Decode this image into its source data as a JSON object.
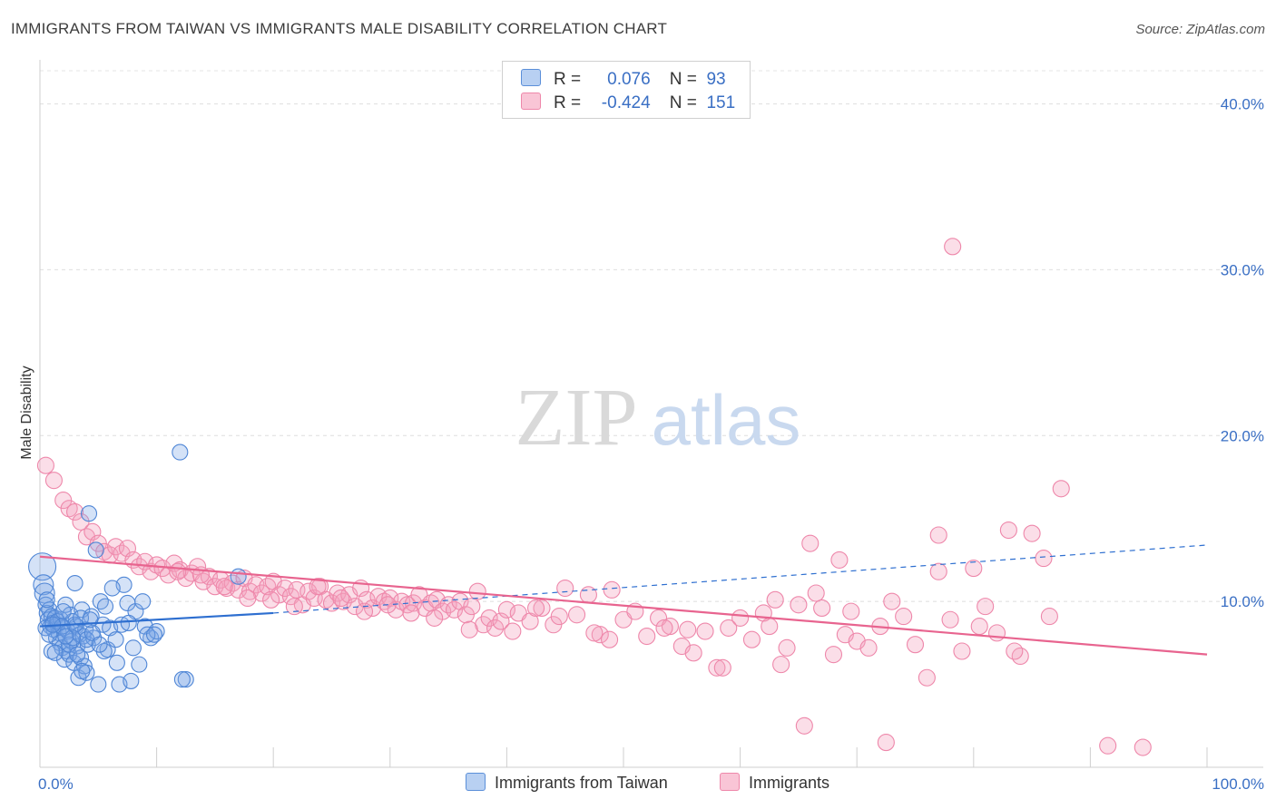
{
  "title": "IMMIGRANTS FROM TAIWAN VS IMMIGRANTS MALE DISABILITY CORRELATION CHART",
  "source": "Source: ZipAtlas.com",
  "watermark": {
    "zip": "ZIP",
    "atlas": "atlas"
  },
  "legend": {
    "r_label": "R =",
    "n_label": "N =",
    "rows": [
      {
        "r": "0.076",
        "n": "93"
      },
      {
        "r": "-0.424",
        "n": "151"
      }
    ]
  },
  "chart_data": {
    "type": "scatter",
    "title": "IMMIGRANTS FROM TAIWAN VS IMMIGRANTS MALE DISABILITY CORRELATION CHART",
    "xlabel": "",
    "ylabel": "Male Disability",
    "xlim": [
      0,
      100
    ],
    "ylim": [
      0,
      42
    ],
    "x_tick_labels": [
      "0.0%",
      "100.0%"
    ],
    "y_ticks": [
      10,
      20,
      30,
      40
    ],
    "y_tick_labels": [
      "10.0%",
      "20.0%",
      "30.0%",
      "40.0%"
    ],
    "grid": true,
    "colors": {
      "taiwan": "#5b8fd9",
      "immigrants": "#ee87aa",
      "taiwan_line": "#2e6fd0",
      "immigrants_line": "#e8648f"
    },
    "series": [
      {
        "name": "Immigrants from Taiwan",
        "trend": {
          "x0": 0,
          "y0": 8.5,
          "x1": 20,
          "y1": 9.3,
          "dash_x1": 100,
          "dash_y1": 13.4
        },
        "points": [
          [
            0.2,
            12.1
          ],
          [
            0.3,
            11.0
          ],
          [
            0.4,
            10.5
          ],
          [
            0.5,
            9.8
          ],
          [
            0.6,
            9.3
          ],
          [
            0.7,
            8.9
          ],
          [
            0.8,
            9.5
          ],
          [
            0.9,
            8.5
          ],
          [
            1.0,
            9.1
          ],
          [
            1.1,
            8.7
          ],
          [
            1.2,
            8.3
          ],
          [
            1.3,
            9.0
          ],
          [
            1.4,
            7.8
          ],
          [
            1.5,
            8.6
          ],
          [
            1.6,
            8.1
          ],
          [
            1.7,
            7.5
          ],
          [
            1.8,
            8.9
          ],
          [
            1.9,
            7.2
          ],
          [
            2.0,
            8.4
          ],
          [
            2.1,
            6.5
          ],
          [
            2.2,
            9.8
          ],
          [
            2.3,
            7.0
          ],
          [
            2.4,
            8.2
          ],
          [
            2.5,
            6.8
          ],
          [
            2.6,
            9.2
          ],
          [
            2.7,
            7.6
          ],
          [
            2.8,
            8.8
          ],
          [
            2.9,
            6.3
          ],
          [
            3.0,
            11.1
          ],
          [
            3.1,
            8.5
          ],
          [
            3.2,
            7.3
          ],
          [
            3.3,
            5.4
          ],
          [
            3.4,
            8.0
          ],
          [
            3.5,
            6.6
          ],
          [
            3.6,
            9.5
          ],
          [
            3.7,
            7.9
          ],
          [
            3.8,
            6.1
          ],
          [
            3.9,
            8.3
          ],
          [
            4.0,
            5.7
          ],
          [
            4.1,
            7.4
          ],
          [
            4.2,
            15.3
          ],
          [
            4.4,
            9.1
          ],
          [
            4.6,
            7.8
          ],
          [
            4.8,
            13.1
          ],
          [
            5.0,
            5.0
          ],
          [
            5.2,
            10.0
          ],
          [
            5.4,
            8.6
          ],
          [
            5.6,
            9.7
          ],
          [
            5.8,
            7.1
          ],
          [
            6.0,
            8.4
          ],
          [
            6.5,
            7.7
          ],
          [
            7.0,
            8.6
          ],
          [
            7.5,
            9.9
          ],
          [
            8.0,
            7.2
          ],
          [
            8.5,
            6.2
          ],
          [
            9.0,
            8.5
          ],
          [
            9.5,
            7.8
          ],
          [
            10.0,
            8.2
          ],
          [
            12.0,
            19.0
          ],
          [
            12.5,
            5.3
          ],
          [
            17.0,
            11.5
          ],
          [
            0.5,
            8.4
          ],
          [
            1.0,
            7.0
          ],
          [
            1.5,
            8.8
          ],
          [
            2.0,
            9.4
          ],
          [
            2.5,
            7.4
          ],
          [
            3.0,
            8.6
          ],
          [
            3.5,
            9.0
          ],
          [
            4.0,
            7.7
          ],
          [
            4.5,
            8.1
          ],
          [
            6.8,
            5.0
          ],
          [
            7.2,
            11.0
          ],
          [
            7.8,
            5.2
          ],
          [
            8.2,
            9.4
          ],
          [
            9.2,
            8.0
          ],
          [
            6.2,
            10.8
          ],
          [
            5.5,
            7.0
          ],
          [
            2.8,
            7.8
          ],
          [
            1.3,
            6.9
          ],
          [
            0.8,
            8.0
          ],
          [
            1.9,
            8.5
          ],
          [
            3.2,
            6.8
          ],
          [
            4.3,
            8.9
          ],
          [
            5.1,
            7.4
          ],
          [
            6.6,
            6.3
          ],
          [
            7.6,
            8.7
          ],
          [
            9.8,
            8.0
          ],
          [
            12.2,
            5.3
          ],
          [
            3.6,
            5.8
          ],
          [
            2.2,
            7.9
          ],
          [
            1.1,
            8.6
          ],
          [
            0.6,
            10.1
          ],
          [
            8.8,
            10.0
          ]
        ]
      },
      {
        "name": "Immigrants",
        "trend": {
          "x0": 0,
          "y0": 12.7,
          "x1": 100,
          "y1": 6.8
        },
        "points": [
          [
            0.5,
            18.2
          ],
          [
            1.2,
            17.3
          ],
          [
            2.0,
            16.1
          ],
          [
            2.5,
            15.6
          ],
          [
            3.0,
            15.4
          ],
          [
            3.5,
            14.8
          ],
          [
            4.0,
            13.9
          ],
          [
            4.5,
            14.2
          ],
          [
            5.0,
            13.5
          ],
          [
            5.5,
            13.0
          ],
          [
            6.0,
            12.8
          ],
          [
            6.5,
            13.3
          ],
          [
            7.0,
            12.9
          ],
          [
            7.5,
            13.2
          ],
          [
            8.0,
            12.5
          ],
          [
            8.5,
            12.1
          ],
          [
            9.0,
            12.4
          ],
          [
            9.5,
            11.8
          ],
          [
            10.0,
            12.2
          ],
          [
            10.5,
            12.0
          ],
          [
            11.0,
            11.6
          ],
          [
            11.5,
            12.3
          ],
          [
            12.0,
            11.9
          ],
          [
            12.5,
            11.4
          ],
          [
            13.0,
            11.7
          ],
          [
            13.5,
            12.1
          ],
          [
            14.0,
            11.2
          ],
          [
            14.5,
            11.5
          ],
          [
            15.0,
            10.9
          ],
          [
            15.5,
            11.3
          ],
          [
            16.0,
            10.8
          ],
          [
            16.5,
            11.1
          ],
          [
            17.0,
            10.7
          ],
          [
            17.5,
            11.4
          ],
          [
            18.0,
            10.6
          ],
          [
            18.5,
            11.0
          ],
          [
            19.0,
            10.5
          ],
          [
            19.5,
            10.9
          ],
          [
            20.0,
            11.2
          ],
          [
            20.5,
            10.4
          ],
          [
            21.0,
            10.8
          ],
          [
            21.5,
            10.3
          ],
          [
            22.0,
            10.7
          ],
          [
            22.5,
            9.8
          ],
          [
            23.0,
            10.6
          ],
          [
            23.5,
            10.2
          ],
          [
            24.0,
            10.9
          ],
          [
            24.5,
            10.1
          ],
          [
            25.0,
            9.9
          ],
          [
            25.5,
            10.5
          ],
          [
            26.0,
            10.0
          ],
          [
            26.5,
            10.4
          ],
          [
            27.0,
            9.7
          ],
          [
            27.5,
            10.8
          ],
          [
            28.0,
            10.1
          ],
          [
            28.5,
            9.6
          ],
          [
            29.0,
            10.3
          ],
          [
            29.5,
            10.0
          ],
          [
            30.0,
            10.2
          ],
          [
            30.5,
            9.5
          ],
          [
            31.0,
            10.0
          ],
          [
            31.5,
            9.8
          ],
          [
            32.0,
            9.9
          ],
          [
            32.5,
            10.4
          ],
          [
            33.0,
            9.6
          ],
          [
            33.5,
            9.9
          ],
          [
            34.0,
            10.1
          ],
          [
            34.5,
            9.4
          ],
          [
            35.0,
            9.8
          ],
          [
            35.5,
            9.5
          ],
          [
            36.0,
            10.0
          ],
          [
            36.5,
            9.2
          ],
          [
            37.0,
            9.7
          ],
          [
            38.0,
            8.6
          ],
          [
            38.5,
            9.0
          ],
          [
            39.0,
            8.4
          ],
          [
            39.5,
            8.8
          ],
          [
            40.0,
            9.5
          ],
          [
            40.5,
            8.2
          ],
          [
            41.0,
            9.3
          ],
          [
            42.0,
            8.8
          ],
          [
            43.0,
            9.6
          ],
          [
            44.0,
            8.6
          ],
          [
            45.0,
            10.8
          ],
          [
            46.0,
            9.2
          ],
          [
            47.0,
            10.4
          ],
          [
            48.0,
            8.0
          ],
          [
            49.0,
            10.7
          ],
          [
            50.0,
            8.9
          ],
          [
            51.0,
            9.4
          ],
          [
            52.0,
            7.9
          ],
          [
            53.0,
            9.0
          ],
          [
            54.0,
            8.5
          ],
          [
            55.0,
            7.3
          ],
          [
            56.0,
            6.9
          ],
          [
            57.0,
            8.2
          ],
          [
            58.0,
            6.0
          ],
          [
            59.0,
            8.4
          ],
          [
            60.0,
            9.0
          ],
          [
            61.0,
            7.7
          ],
          [
            62.0,
            9.3
          ],
          [
            63.0,
            10.1
          ],
          [
            64.0,
            7.2
          ],
          [
            65.0,
            9.8
          ],
          [
            66.0,
            13.5
          ],
          [
            66.5,
            10.5
          ],
          [
            67.0,
            9.6
          ],
          [
            68.0,
            6.8
          ],
          [
            68.5,
            12.5
          ],
          [
            69.0,
            8.0
          ],
          [
            70.0,
            7.6
          ],
          [
            71.0,
            7.2
          ],
          [
            72.0,
            8.5
          ],
          [
            73.0,
            10.0
          ],
          [
            74.0,
            9.1
          ],
          [
            75.0,
            7.4
          ],
          [
            76.0,
            5.4
          ],
          [
            77.0,
            11.8
          ],
          [
            78.0,
            8.9
          ],
          [
            79.0,
            7.0
          ],
          [
            80.0,
            12.0
          ],
          [
            81.0,
            9.7
          ],
          [
            82.0,
            8.1
          ],
          [
            83.0,
            14.3
          ],
          [
            84.0,
            6.7
          ],
          [
            85.0,
            14.1
          ],
          [
            86.0,
            12.6
          ],
          [
            87.5,
            16.8
          ],
          [
            55.5,
            8.3
          ],
          [
            47.5,
            8.1
          ],
          [
            44.5,
            9.1
          ],
          [
            42.5,
            9.6
          ],
          [
            37.5,
            10.6
          ],
          [
            36.8,
            8.3
          ],
          [
            33.8,
            9.0
          ],
          [
            31.8,
            9.3
          ],
          [
            29.8,
            9.8
          ],
          [
            27.8,
            9.4
          ],
          [
            25.8,
            10.2
          ],
          [
            23.8,
            10.9
          ],
          [
            21.8,
            9.7
          ],
          [
            19.8,
            10.1
          ],
          [
            17.8,
            10.2
          ],
          [
            15.8,
            10.9
          ],
          [
            13.8,
            11.6
          ],
          [
            11.8,
            11.8
          ],
          [
            63.5,
            6.2
          ],
          [
            72.5,
            1.5
          ],
          [
            78.2,
            31.4
          ],
          [
            58.5,
            6.0
          ],
          [
            65.5,
            2.5
          ],
          [
            91.5,
            1.3
          ],
          [
            94.5,
            1.2
          ],
          [
            77.0,
            14.0
          ],
          [
            69.5,
            9.4
          ],
          [
            62.5,
            8.5
          ],
          [
            53.5,
            8.4
          ],
          [
            48.8,
            7.7
          ],
          [
            80.5,
            8.5
          ],
          [
            83.5,
            7.0
          ],
          [
            86.5,
            9.1
          ]
        ]
      }
    ]
  },
  "bottom_legend": [
    {
      "label": "Immigrants from Taiwan"
    },
    {
      "label": "Immigrants"
    }
  ]
}
